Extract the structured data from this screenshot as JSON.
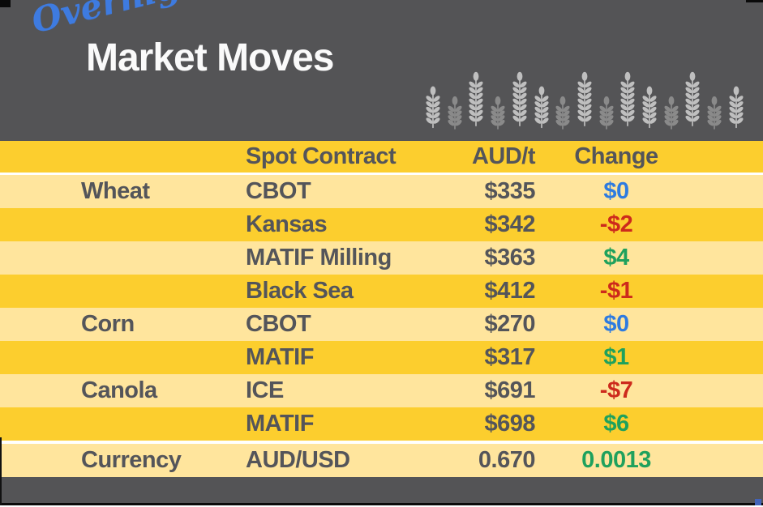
{
  "header": {
    "script_title": "Overnight",
    "title": "Market Moves",
    "wheat_icons": {
      "icon": "wheat-icon",
      "count": 15,
      "sizes": [
        "med",
        "small",
        "tall",
        "small",
        "tall",
        "med",
        "small",
        "tall",
        "small",
        "tall",
        "med",
        "small",
        "tall",
        "small",
        "med"
      ]
    }
  },
  "table": {
    "header": {
      "commodity": "",
      "contract": "Spot Contract",
      "price": "AUD/t",
      "change": "Change"
    },
    "rows": [
      {
        "commodity": "Wheat",
        "contract": "CBOT",
        "price": "$335",
        "change": "$0",
        "change_color": "blue",
        "band": "cream"
      },
      {
        "commodity": "",
        "contract": "Kansas",
        "price": "$342",
        "change": "-$2",
        "change_color": "red",
        "band": "gold"
      },
      {
        "commodity": "",
        "contract": "MATIF Milling",
        "price": "$363",
        "change": "$4",
        "change_color": "green",
        "band": "cream"
      },
      {
        "commodity": "",
        "contract": "Black Sea",
        "price": "$412",
        "change": "-$1",
        "change_color": "red",
        "band": "gold"
      },
      {
        "commodity": "Corn",
        "contract": "CBOT",
        "price": "$270",
        "change": "$0",
        "change_color": "blue",
        "band": "cream"
      },
      {
        "commodity": "",
        "contract": "MATIF",
        "price": "$317",
        "change": "$1",
        "change_color": "green",
        "band": "gold"
      },
      {
        "commodity": "Canola",
        "contract": "ICE",
        "price": "$691",
        "change": "-$7",
        "change_color": "red",
        "band": "cream"
      },
      {
        "commodity": "",
        "contract": "MATIF",
        "price": "$698",
        "change": "$6",
        "change_color": "green",
        "band": "gold"
      },
      {
        "commodity": "Currency",
        "contract": "AUD/USD",
        "price": "0.670",
        "change": "0.0013",
        "change_color": "green",
        "band": "cream",
        "separator_before": true
      }
    ]
  },
  "colors": {
    "background_dark": "#545456",
    "row_gold": "#fcce2e",
    "row_cream": "#ffe59d",
    "text_dark": "#54555a",
    "change_blue": "#2e7be0",
    "change_red": "#cd2a1c",
    "change_green": "#1fa15d",
    "script_blue": "#3e7be0",
    "wheat_bright": "#bfbfbf",
    "wheat_dim": "#8a8a8a",
    "selection_handle_blue": "#4263b8"
  },
  "chart_data": {
    "type": "table",
    "title": "Overnight Market Moves",
    "columns": [
      "Commodity",
      "Spot Contract",
      "AUD/t",
      "Change"
    ],
    "rows": [
      [
        "Wheat",
        "CBOT",
        "$335",
        "$0"
      ],
      [
        "Wheat",
        "Kansas",
        "$342",
        "-$2"
      ],
      [
        "Wheat",
        "MATIF Milling",
        "$363",
        "$4"
      ],
      [
        "Wheat",
        "Black Sea",
        "$412",
        "-$1"
      ],
      [
        "Corn",
        "CBOT",
        "$270",
        "$0"
      ],
      [
        "Corn",
        "MATIF",
        "$317",
        "$1"
      ],
      [
        "Canola",
        "ICE",
        "$691",
        "-$7"
      ],
      [
        "Canola",
        "MATIF",
        "$698",
        "$6"
      ],
      [
        "Currency",
        "AUD/USD",
        "0.670",
        "0.0013"
      ]
    ]
  }
}
